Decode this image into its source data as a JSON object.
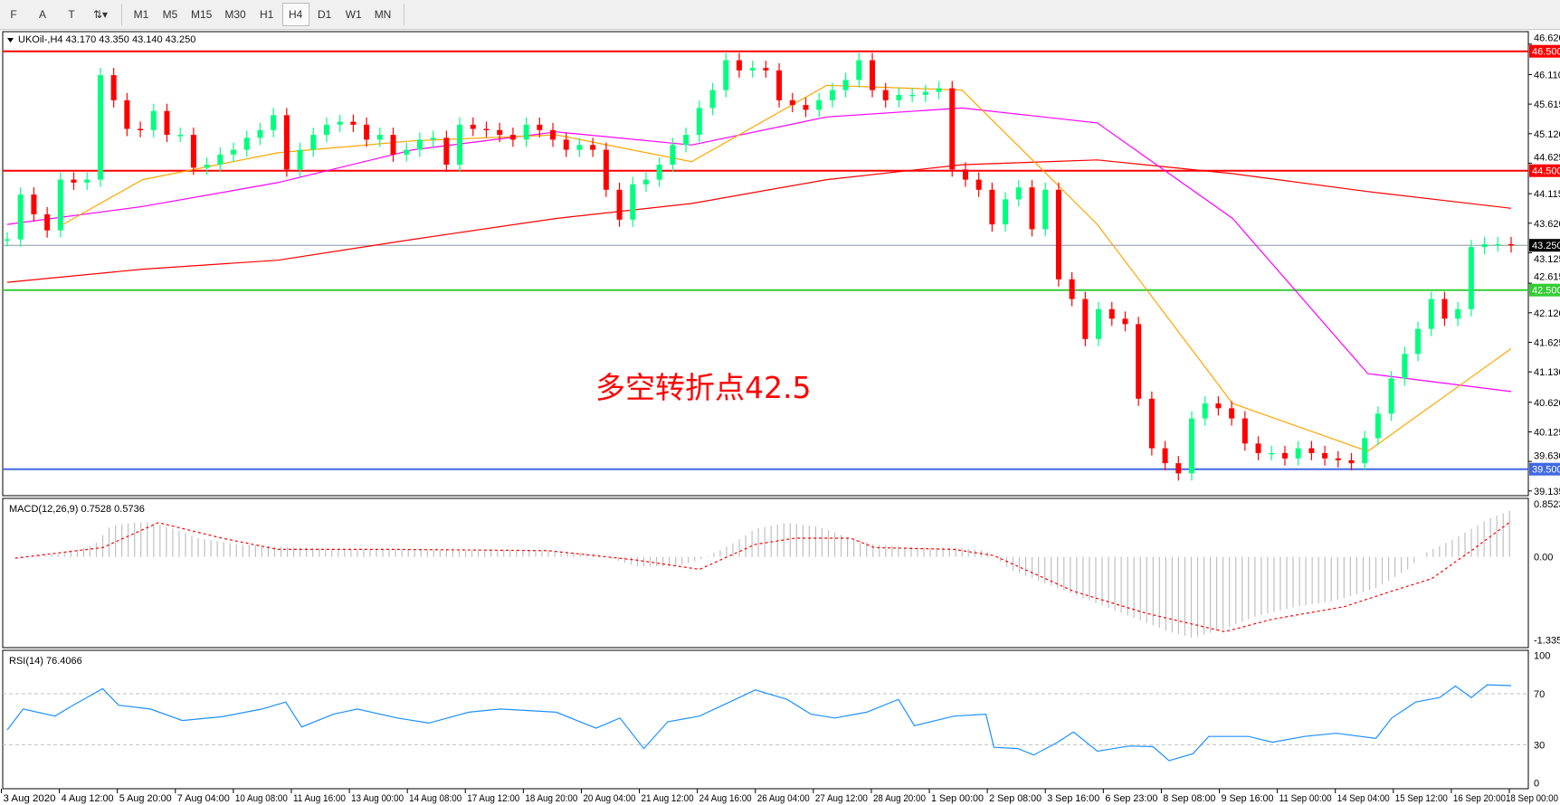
{
  "toolbar": {
    "tools": [
      {
        "name": "fibo-fan-tool",
        "label": "F"
      },
      {
        "name": "text-tool",
        "label": "A"
      },
      {
        "name": "text-label-tool",
        "label": "T"
      },
      {
        "name": "arrows-tool",
        "label": "⇅▾"
      }
    ],
    "timeframes": [
      "M1",
      "M5",
      "M15",
      "M30",
      "H1",
      "H4",
      "D1",
      "W1",
      "MN"
    ],
    "active_timeframe": "H4"
  },
  "chart_data": {
    "type": "candlestick",
    "symbol_label": "UKOil-,H4  43.170 43.350 43.140 43.250",
    "annotation": "多空转折点42.5",
    "colors": {
      "up": "#00ff7f",
      "down": "#ff0000",
      "ma_fast": "#ffa500",
      "ma_mid": "#ff00ff",
      "ma_slow": "#ff0000",
      "rsi": "#1e90ff",
      "macd_hist": "#c0c0c0",
      "macd_signal": "#ff0000"
    },
    "price_axis": {
      "range": [
        39.0,
        46.75
      ],
      "ticks": [
        "46.620",
        "46.110",
        "45.615",
        "45.120",
        "44.625",
        "44.115",
        "43.620",
        "43.125",
        "42.615",
        "42.120",
        "41.625",
        "41.130",
        "40.620",
        "40.125",
        "39.630",
        "39.135"
      ]
    },
    "levels": [
      {
        "price": 46.5,
        "label": "46.500",
        "color": "#ff0000"
      },
      {
        "price": 44.5,
        "label": "44.500",
        "color": "#ff0000"
      },
      {
        "price": 42.5,
        "label": "42.500",
        "color": "#32cd32"
      },
      {
        "price": 39.5,
        "label": "39.500",
        "color": "#4169e1"
      }
    ],
    "bid": {
      "price": 43.25,
      "label": "43.250"
    },
    "time_labels": [
      "3 Aug 2020",
      "4 Aug 12:00",
      "5 Aug 20:00",
      "7 Aug 04:00",
      "10 Aug 08:00",
      "11 Aug 16:00",
      "13 Aug 00:00",
      "14 Aug 08:00",
      "17 Aug 12:00",
      "18 Aug 20:00",
      "20 Aug 04:00",
      "21 Aug 12:00",
      "24 Aug 16:00",
      "26 Aug 04:00",
      "27 Aug 12:00",
      "28 Aug 20:00",
      "1 Sep 00:00",
      "2 Sep 08:00",
      "3 Sep 16:00",
      "6 Sep 23:00",
      "8 Sep 08:00",
      "9 Sep 16:00",
      "11 Sep 00:00",
      "14 Sep 04:00",
      "15 Sep 12:00",
      "16 Sep 20:00",
      "18 Sep 00:00"
    ],
    "closes": [
      43.35,
      44.1,
      43.77,
      43.5,
      44.35,
      44.3,
      44.35,
      46.1,
      45.68,
      45.2,
      45.18,
      45.5,
      45.1,
      45.1,
      44.55,
      44.6,
      44.77,
      44.85,
      45.05,
      45.18,
      45.43,
      44.52,
      44.85,
      45.1,
      45.27,
      45.32,
      45.27,
      45.02,
      45.1,
      44.77,
      44.85,
      45.02,
      45.05,
      44.6,
      45.27,
      45.2,
      45.18,
      45.1,
      45.02,
      45.27,
      45.18,
      45.02,
      44.85,
      44.93,
      44.85,
      44.18,
      43.68,
      44.27,
      44.35,
      44.6,
      44.93,
      45.1,
      45.55,
      45.85,
      46.35,
      46.18,
      46.22,
      46.18,
      45.68,
      45.6,
      45.52,
      45.68,
      45.85,
      46.02,
      46.35,
      45.85,
      45.68,
      45.77,
      45.77,
      45.82,
      45.88,
      44.52,
      44.35,
      44.18,
      43.6,
      44.02,
      44.22,
      43.52,
      44.18,
      42.68,
      42.35,
      41.68,
      42.18,
      42.02,
      41.93,
      40.68,
      39.85,
      39.6,
      39.43,
      40.35,
      40.6,
      40.52,
      40.35,
      39.93,
      39.77,
      39.77,
      39.68,
      39.85,
      39.77,
      39.68,
      39.65,
      39.6,
      40.02,
      40.43,
      41.02,
      41.43,
      41.85,
      42.35,
      42.02,
      42.18,
      43.22,
      43.27,
      43.27,
      43.25
    ],
    "ma_slow": [
      [
        0,
        42.63
      ],
      [
        17,
        42.85
      ],
      [
        34,
        43.0
      ],
      [
        51,
        43.35
      ],
      [
        69,
        43.7
      ],
      [
        86,
        43.95
      ],
      [
        103,
        44.35
      ],
      [
        120,
        44.6
      ],
      [
        137,
        44.68
      ],
      [
        154,
        44.45
      ],
      [
        171,
        44.15
      ],
      [
        189,
        43.87
      ]
    ],
    "ma_mid": [
      [
        0,
        43.6
      ],
      [
        17,
        43.9
      ],
      [
        34,
        44.3
      ],
      [
        51,
        44.85
      ],
      [
        69,
        45.15
      ],
      [
        86,
        44.93
      ],
      [
        103,
        45.4
      ],
      [
        120,
        45.55
      ],
      [
        137,
        45.3
      ],
      [
        154,
        43.7
      ],
      [
        171,
        41.1
      ],
      [
        189,
        40.8
      ]
    ],
    "ma_fast": [
      [
        7,
        43.6
      ],
      [
        17,
        44.35
      ],
      [
        34,
        44.8
      ],
      [
        51,
        45.0
      ],
      [
        69,
        45.1
      ],
      [
        86,
        44.65
      ],
      [
        103,
        45.93
      ],
      [
        120,
        45.85
      ],
      [
        137,
        43.6
      ],
      [
        154,
        40.6
      ],
      [
        171,
        39.8
      ],
      [
        189,
        41.52
      ]
    ],
    "macd": {
      "label": "MACD(12,26,9) 0.7528 0.5736",
      "max_label": "0.8523",
      "zero_label": "0.00",
      "min_label": "-1.3354",
      "range": [
        -1.3354,
        0.8523
      ],
      "histogram": [
        [
          1,
          0
        ],
        [
          7,
          0.05
        ],
        [
          11,
          0.2
        ],
        [
          13,
          0.5
        ],
        [
          16,
          0.55
        ],
        [
          18,
          0.55
        ],
        [
          21,
          0.45
        ],
        [
          24,
          0.3
        ],
        [
          29,
          0.2
        ],
        [
          37,
          0.15
        ],
        [
          43,
          0.12
        ],
        [
          49,
          0.12
        ],
        [
          56,
          0.1
        ],
        [
          62,
          0.1
        ],
        [
          68,
          0.1
        ],
        [
          74,
          0.05
        ],
        [
          79,
          -0.15
        ],
        [
          84,
          -0.15
        ],
        [
          87,
          -0.05
        ],
        [
          91,
          0.2
        ],
        [
          94,
          0.45
        ],
        [
          98,
          0.55
        ],
        [
          102,
          0.48
        ],
        [
          106,
          0.3
        ],
        [
          109,
          0.2
        ],
        [
          114,
          0.15
        ],
        [
          119,
          0.15
        ],
        [
          123,
          0.1
        ],
        [
          126,
          -0.2
        ],
        [
          131,
          -0.45
        ],
        [
          136,
          -0.7
        ],
        [
          141,
          -0.95
        ],
        [
          146,
          -1.2
        ],
        [
          149,
          -1.3
        ],
        [
          153,
          -1.15
        ],
        [
          157,
          -0.95
        ],
        [
          162,
          -0.8
        ],
        [
          167,
          -0.7
        ],
        [
          172,
          -0.5
        ],
        [
          176,
          -0.2
        ],
        [
          178,
          0.05
        ],
        [
          182,
          0.3
        ],
        [
          186,
          0.6
        ],
        [
          189,
          0.7528
        ]
      ],
      "signal": [
        [
          1,
          -0.02
        ],
        [
          12,
          0.15
        ],
        [
          19,
          0.55
        ],
        [
          27,
          0.3
        ],
        [
          34,
          0.12
        ],
        [
          49,
          0.12
        ],
        [
          68,
          0.1
        ],
        [
          79,
          -0.05
        ],
        [
          87,
          -0.2
        ],
        [
          94,
          0.2
        ],
        [
          99,
          0.3
        ],
        [
          106,
          0.3
        ],
        [
          109,
          0.15
        ],
        [
          119,
          0.12
        ],
        [
          124,
          0.02
        ],
        [
          134,
          -0.55
        ],
        [
          143,
          -0.9
        ],
        [
          153,
          -1.2
        ],
        [
          159,
          -1.0
        ],
        [
          168,
          -0.8
        ],
        [
          174,
          -0.55
        ],
        [
          179,
          -0.35
        ],
        [
          184,
          0.1
        ],
        [
          189,
          0.5736
        ]
      ]
    },
    "rsi": {
      "label": "RSI(14) 76.4066",
      "ticks": [
        "100",
        "70",
        "30",
        "0"
      ],
      "levels": [
        70,
        30
      ],
      "values": [
        [
          0,
          41.6
        ],
        [
          2,
          58
        ],
        [
          6,
          52.5
        ],
        [
          8,
          60
        ],
        [
          12,
          74
        ],
        [
          14,
          61
        ],
        [
          18,
          58
        ],
        [
          22,
          49
        ],
        [
          27,
          52
        ],
        [
          32,
          58
        ],
        [
          35,
          63.5
        ],
        [
          37,
          44
        ],
        [
          41,
          54
        ],
        [
          44,
          58
        ],
        [
          49,
          51
        ],
        [
          53,
          47
        ],
        [
          58,
          55.5
        ],
        [
          62,
          58
        ],
        [
          69,
          55.5
        ],
        [
          74,
          43
        ],
        [
          77,
          51
        ],
        [
          80,
          27
        ],
        [
          83,
          48
        ],
        [
          87,
          52.5
        ],
        [
          92,
          67
        ],
        [
          94,
          73
        ],
        [
          98,
          65.6
        ],
        [
          101,
          54
        ],
        [
          104,
          51
        ],
        [
          108,
          55.5
        ],
        [
          112,
          65.6
        ],
        [
          114,
          45
        ],
        [
          119,
          52.5
        ],
        [
          123,
          54
        ],
        [
          124,
          28
        ],
        [
          127,
          27
        ],
        [
          129,
          22
        ],
        [
          132,
          32
        ],
        [
          134,
          40
        ],
        [
          137,
          25
        ],
        [
          141,
          29
        ],
        [
          144,
          28.5
        ],
        [
          146,
          17.6
        ],
        [
          149,
          23
        ],
        [
          151,
          36.5
        ],
        [
          156,
          36.5
        ],
        [
          159,
          32
        ],
        [
          163,
          36.5
        ],
        [
          167,
          39
        ],
        [
          172,
          35
        ],
        [
          174,
          51
        ],
        [
          177,
          63.5
        ],
        [
          180,
          67
        ],
        [
          182,
          76
        ],
        [
          184,
          67
        ],
        [
          186,
          77
        ],
        [
          189,
          76.4
        ]
      ]
    }
  }
}
